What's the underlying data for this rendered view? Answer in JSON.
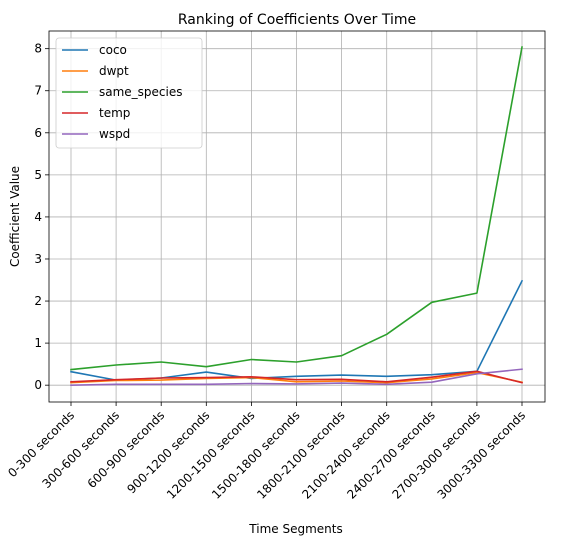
{
  "chart_data": {
    "type": "line",
    "title": "Ranking of Coefficients Over Time",
    "xlabel": "Time Segments",
    "ylabel": "Coefficient Value",
    "categories": [
      "0-300 seconds",
      "300-600 seconds",
      "600-900 seconds",
      "900-1200 seconds",
      "1200-1500 seconds",
      "1500-1800 seconds",
      "1800-2100 seconds",
      "2100-2400 seconds",
      "2400-2700 seconds",
      "2700-3000 seconds",
      "3000-3300 seconds"
    ],
    "ylim": [
      -0.4,
      8.42
    ],
    "yticks": [
      0,
      1,
      2,
      3,
      4,
      5,
      6,
      7,
      8
    ],
    "grid": true,
    "legend_position": "top-left",
    "series": [
      {
        "name": "coco",
        "color": "#1f77b4",
        "values": [
          0.32,
          0.12,
          0.17,
          0.31,
          0.16,
          0.21,
          0.24,
          0.21,
          0.25,
          0.33,
          2.48
        ]
      },
      {
        "name": "dwpt",
        "color": "#ff7f0e",
        "values": [
          0.06,
          0.11,
          0.12,
          0.16,
          0.18,
          0.08,
          0.1,
          0.06,
          0.15,
          0.3,
          0.07
        ]
      },
      {
        "name": "same_species",
        "color": "#2ca02c",
        "values": [
          0.37,
          0.48,
          0.55,
          0.44,
          0.61,
          0.55,
          0.7,
          1.21,
          1.97,
          2.19,
          8.04
        ]
      },
      {
        "name": "temp",
        "color": "#d62728",
        "values": [
          0.08,
          0.13,
          0.17,
          0.18,
          0.2,
          0.13,
          0.14,
          0.08,
          0.19,
          0.33,
          0.06
        ]
      },
      {
        "name": "wspd",
        "color": "#9467bd",
        "values": [
          0.0,
          0.02,
          0.02,
          0.02,
          0.04,
          0.03,
          0.05,
          0.02,
          0.07,
          0.27,
          0.38
        ]
      }
    ]
  }
}
